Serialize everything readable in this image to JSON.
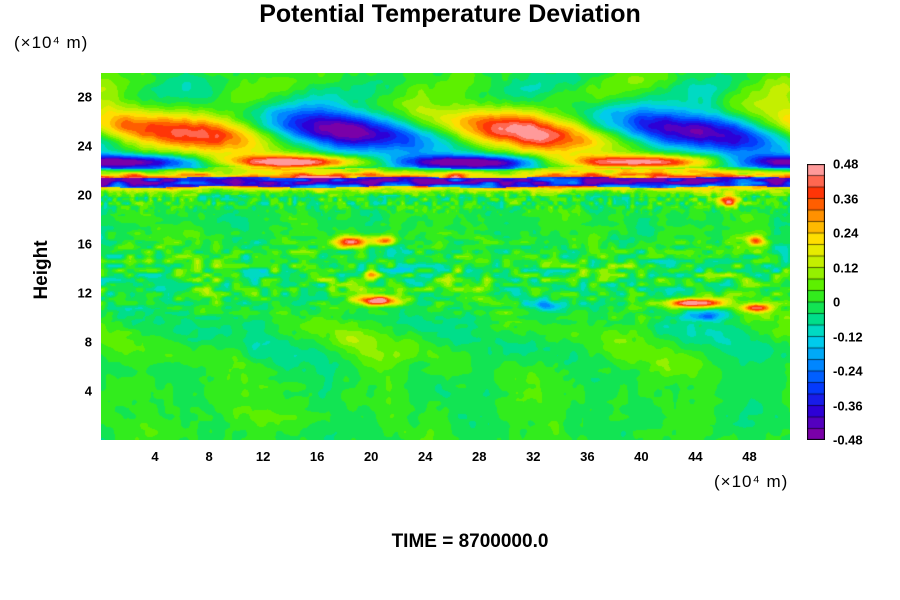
{
  "chart_data": {
    "type": "heatmap",
    "title": "Potential Temperature Deviation",
    "xlabel": "",
    "ylabel": "Height",
    "x_unit": "(×10⁴ m)",
    "y_unit": "(×10⁴ m)",
    "xlim": [
      0,
      51
    ],
    "ylim": [
      0,
      30
    ],
    "x_ticks": [
      "4",
      "8",
      "12",
      "16",
      "20",
      "24",
      "28",
      "32",
      "36",
      "40",
      "44",
      "48"
    ],
    "y_ticks": [
      "4",
      "8",
      "12",
      "16",
      "20",
      "24",
      "28"
    ],
    "colorbar": {
      "min": -0.48,
      "max": 0.48,
      "ticks": [
        "0.48",
        "0.36",
        "0.24",
        "0.12",
        "0",
        "-0.12",
        "-0.24",
        "-0.36",
        "-0.48"
      ],
      "colors": [
        "#7a00a8",
        "#2a00d8",
        "#0040ff",
        "#0090ff",
        "#00d8e8",
        "#00e070",
        "#44f000",
        "#b8f000",
        "#ffe800",
        "#ff9a00",
        "#ff3000",
        "#ff9a9a"
      ]
    },
    "features": [
      {
        "region": "upper wave layer",
        "height_range": [
          22,
          27
        ],
        "pattern": "alternating warm/cold lobes",
        "amplitude_max": 0.48
      },
      {
        "region": "sharp band",
        "height_range": [
          20,
          22
        ],
        "pattern": "strong alternating stripes",
        "amplitude_max": 0.48
      },
      {
        "region": "mid-level patches",
        "height_range": [
          10,
          17
        ],
        "pattern": "scattered warm blobs",
        "amplitude_max": 0.48
      },
      {
        "region": "lower field",
        "height_range": [
          0,
          10
        ],
        "pattern": "weak fluctuations",
        "amplitude_max": 0.1
      }
    ],
    "annotation": "TIME = 8700000.0"
  }
}
